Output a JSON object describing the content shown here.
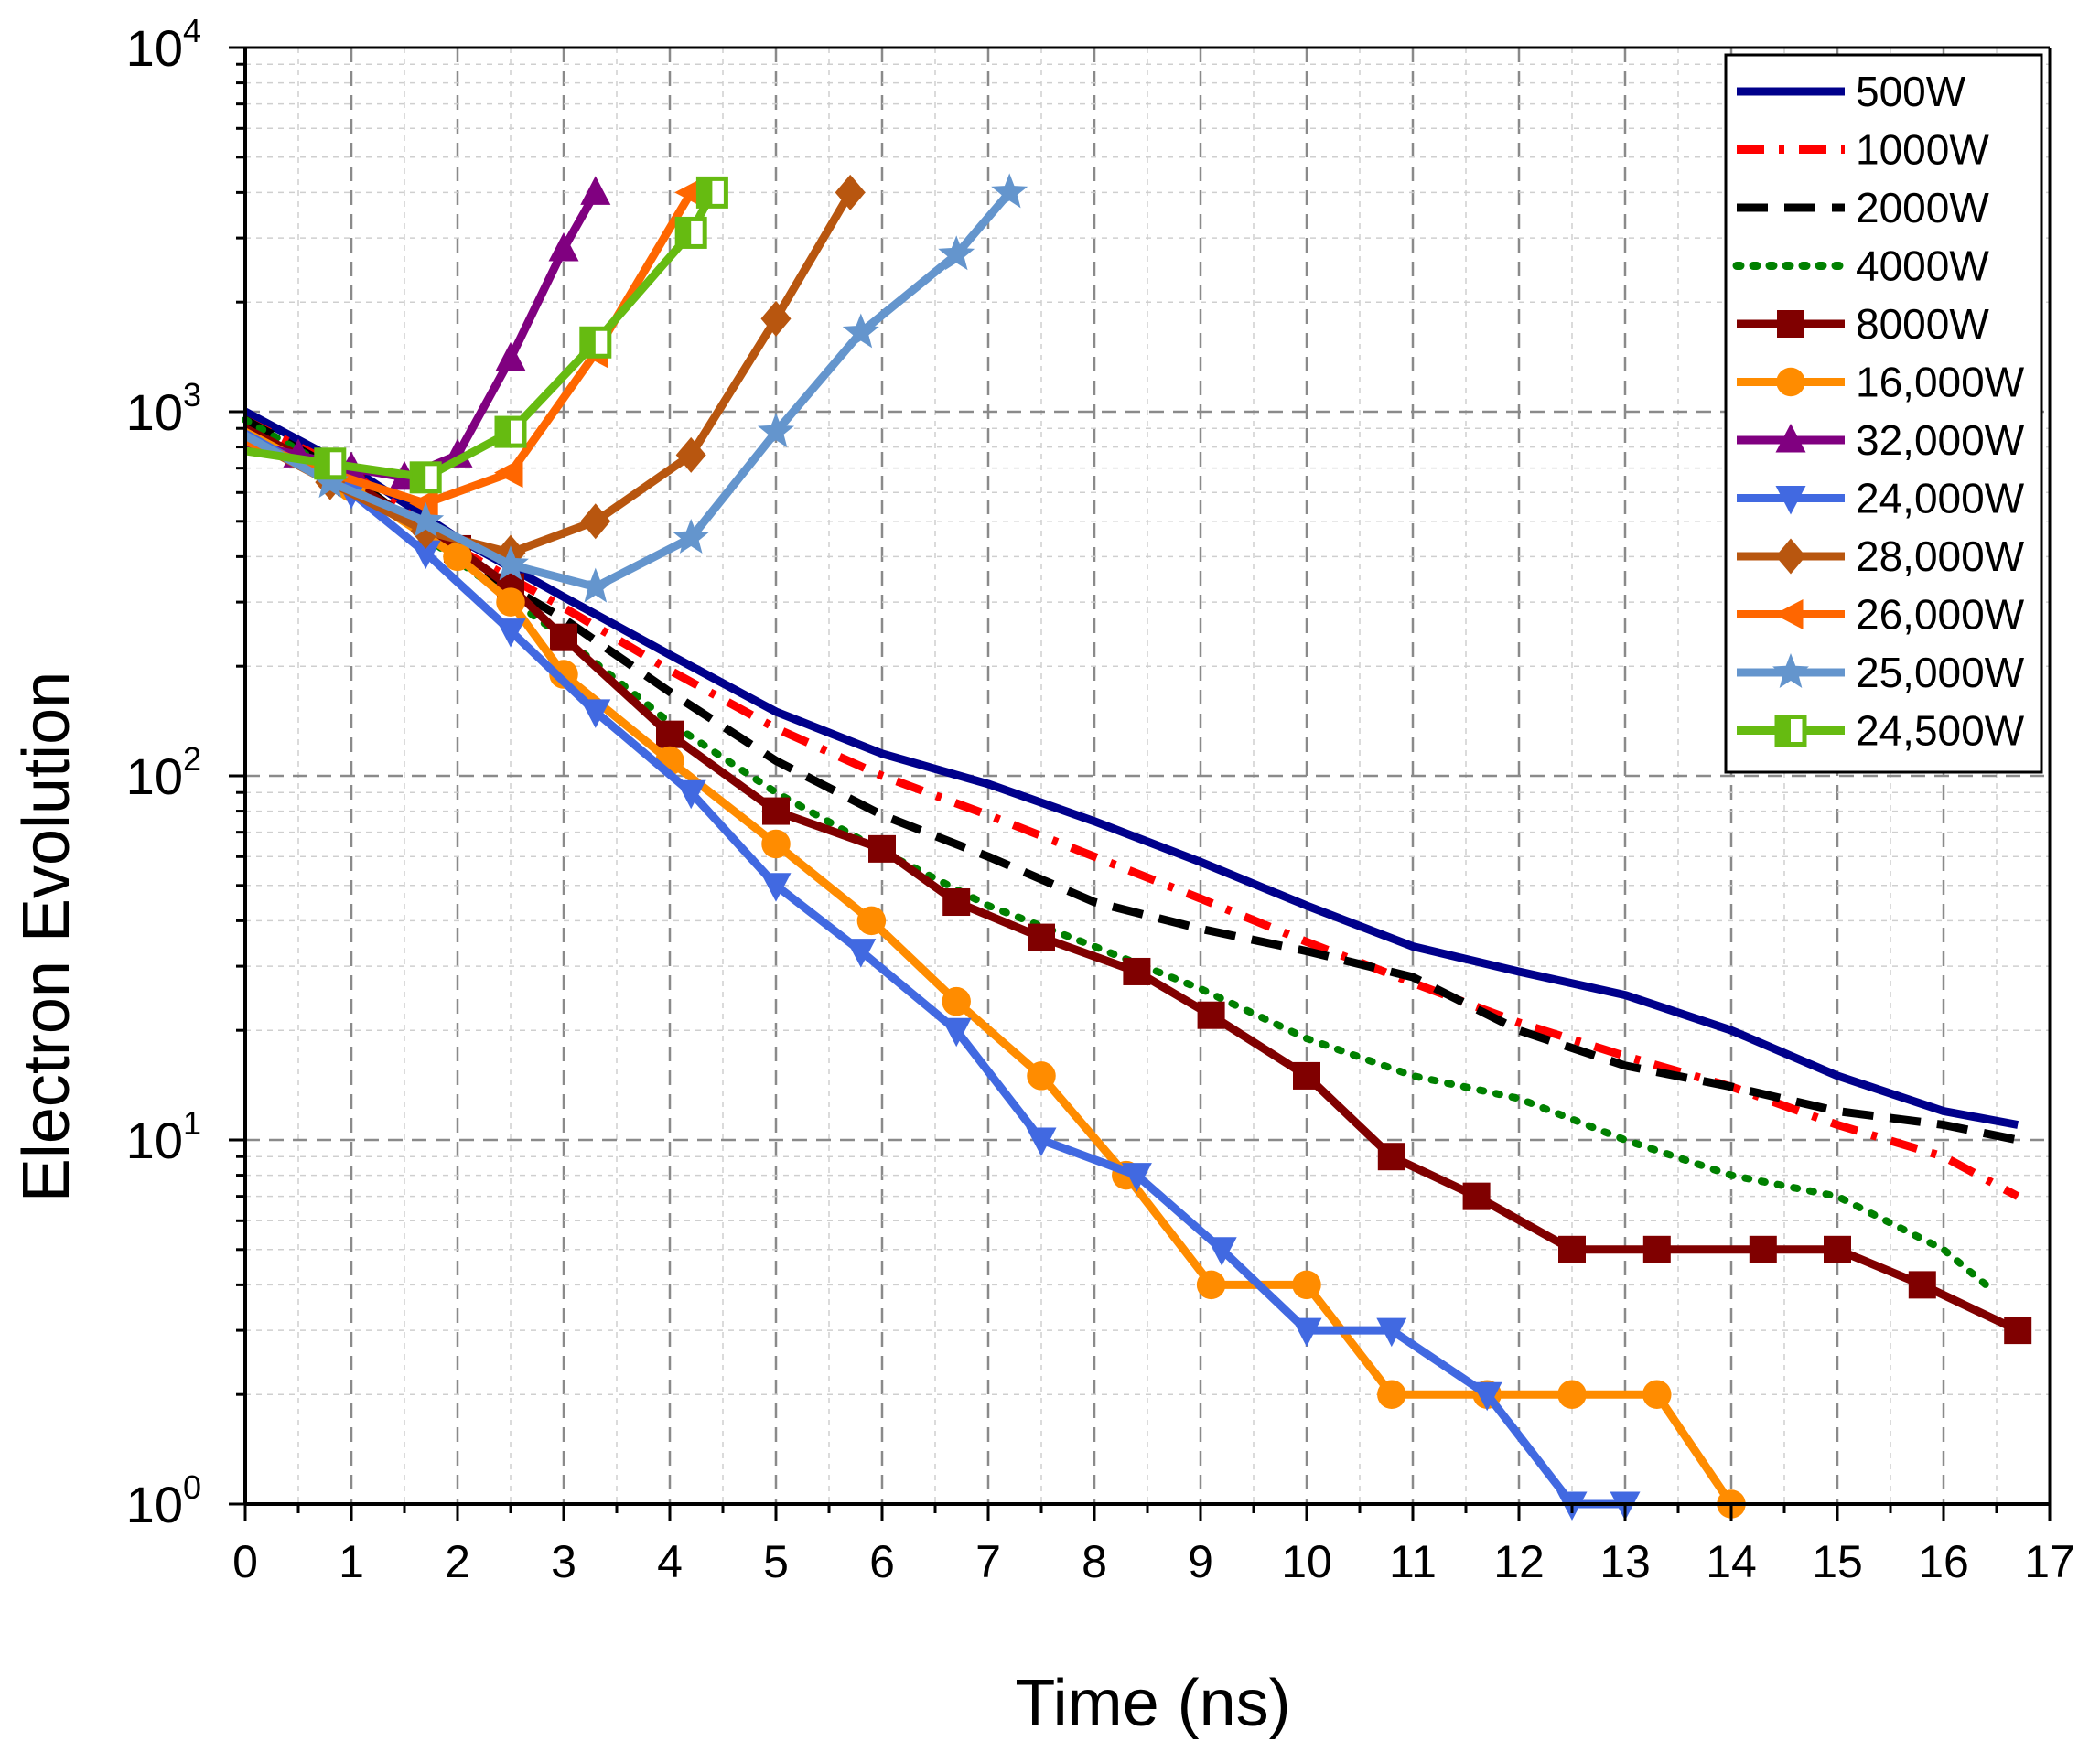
{
  "chart_data": {
    "type": "line",
    "title": "",
    "xlabel": "Time (ns)",
    "ylabel": "Electron Evolution",
    "xlim": [
      0,
      17
    ],
    "ylim": [
      1,
      10000
    ],
    "yscale": "log",
    "x_ticks": [
      "0",
      "1",
      "2",
      "3",
      "4",
      "5",
      "6",
      "7",
      "8",
      "9",
      "10",
      "11",
      "12",
      "13",
      "14",
      "15",
      "16",
      "17"
    ],
    "y_ticks": [
      {
        "value": 1,
        "base": "10",
        "exp": "0"
      },
      {
        "value": 10,
        "base": "10",
        "exp": "1"
      },
      {
        "value": 100,
        "base": "10",
        "exp": "2"
      },
      {
        "value": 1000,
        "base": "10",
        "exp": "3"
      },
      {
        "value": 10000,
        "base": "10",
        "exp": "4"
      }
    ],
    "grid": true,
    "legend_position": "top-right",
    "series": [
      {
        "name": "500W",
        "color": "#00008B",
        "style": "solid",
        "marker": "none",
        "x": [
          0,
          1,
          2,
          3,
          4,
          5,
          6,
          7,
          8,
          9,
          10,
          11,
          12,
          13,
          14,
          15,
          16,
          16.7
        ],
        "y": [
          1000,
          700,
          450,
          310,
          215,
          150,
          115,
          95,
          75,
          58,
          44,
          34,
          29,
          25,
          20,
          15,
          12,
          11
        ]
      },
      {
        "name": "1000W",
        "color": "#FF0000",
        "style": "dashdot",
        "marker": "none",
        "x": [
          0,
          1,
          2,
          3,
          4,
          5,
          6,
          7,
          8,
          9,
          10,
          11,
          12,
          13,
          14,
          15,
          16,
          16.7
        ],
        "y": [
          950,
          680,
          420,
          290,
          195,
          135,
          100,
          78,
          60,
          46,
          35,
          27,
          21,
          17,
          14,
          11,
          9,
          7
        ]
      },
      {
        "name": "2000W",
        "color": "#000000",
        "style": "dashed",
        "marker": "none",
        "x": [
          0,
          1,
          2,
          3,
          4,
          5,
          6,
          7,
          8,
          9,
          10,
          11,
          12,
          13,
          14,
          15,
          16,
          16.7
        ],
        "y": [
          950,
          660,
          400,
          270,
          170,
          110,
          78,
          60,
          45,
          38,
          33,
          28,
          20,
          16,
          14,
          12,
          11,
          10
        ]
      },
      {
        "name": "4000W",
        "color": "#008000",
        "style": "dotted",
        "marker": "none",
        "x": [
          0,
          1,
          2,
          3,
          4,
          5,
          6,
          7,
          8,
          9,
          10,
          11,
          12,
          13,
          14,
          15,
          16,
          16.4
        ],
        "y": [
          950,
          650,
          390,
          240,
          140,
          90,
          62,
          44,
          34,
          26,
          19,
          15,
          13,
          10,
          8,
          7,
          5,
          4
        ]
      },
      {
        "name": "8000W",
        "color": "#800000",
        "style": "solid",
        "marker": "square",
        "x": [
          0,
          1,
          2,
          2.5,
          3,
          4,
          5,
          6,
          6.7,
          7.5,
          8.4,
          9.1,
          10,
          10.8,
          11.6,
          12.5,
          13.3,
          14.3,
          15,
          15.8,
          16.7
        ],
        "y": [
          900,
          640,
          420,
          330,
          240,
          130,
          80,
          63,
          45,
          36,
          29,
          22,
          15,
          9,
          7,
          5,
          5,
          5,
          5,
          4,
          3
        ]
      },
      {
        "name": "16,000W",
        "color": "#FF8C00",
        "style": "solid",
        "marker": "circle",
        "x": [
          0,
          1,
          2,
          2.5,
          3,
          4,
          5,
          5.9,
          6.7,
          7.5,
          8.3,
          9.1,
          10,
          10.8,
          11.7,
          12.5,
          13.3,
          14
        ],
        "y": [
          880,
          620,
          400,
          300,
          190,
          110,
          65,
          40,
          24,
          15,
          8,
          4,
          4,
          2,
          2,
          2,
          2,
          1
        ]
      },
      {
        "name": "32,000W",
        "color": "#800080",
        "style": "solid",
        "marker": "triangle-up",
        "x": [
          0,
          0.5,
          1,
          1.5,
          2,
          2.5,
          3,
          3.3
        ],
        "y": [
          820,
          760,
          700,
          660,
          760,
          1400,
          2800,
          4000
        ]
      },
      {
        "name": "24,000W",
        "color": "#4169E1",
        "style": "solid",
        "marker": "triangle-down",
        "x": [
          0,
          1,
          1.7,
          2.5,
          3.3,
          4.2,
          5,
          5.8,
          6.7,
          7.5,
          8.4,
          9.2,
          10,
          10.8,
          11.7,
          12.5,
          13
        ],
        "y": [
          870,
          600,
          410,
          250,
          150,
          90,
          50,
          33,
          20,
          10,
          8,
          5,
          3,
          3,
          2,
          1,
          1
        ]
      },
      {
        "name": "28,000W",
        "color": "#B8560F",
        "style": "solid",
        "marker": "diamond",
        "x": [
          0,
          0.8,
          1.7,
          2.5,
          3.3,
          4.2,
          5,
          5.7
        ],
        "y": [
          850,
          640,
          470,
          410,
          500,
          760,
          1800,
          4000
        ]
      },
      {
        "name": "26,000W",
        "color": "#FF6600",
        "style": "solid",
        "marker": "triangle-left",
        "x": [
          0,
          0.8,
          1.7,
          2.5,
          3.3,
          4.2
        ],
        "y": [
          830,
          680,
          560,
          680,
          1450,
          4000
        ]
      },
      {
        "name": "25,000W",
        "color": "#6495CD",
        "style": "solid",
        "marker": "star",
        "x": [
          0,
          0.8,
          1.7,
          2.5,
          3.3,
          4.2,
          5,
          5.8,
          6.7,
          7.2
        ],
        "y": [
          860,
          640,
          500,
          380,
          330,
          450,
          880,
          1650,
          2700,
          4000
        ]
      },
      {
        "name": "24,500W",
        "color": "#66BB11",
        "style": "solid",
        "marker": "half-square",
        "x": [
          0,
          0.8,
          1.7,
          2.5,
          3.3,
          4.2,
          4.4
        ],
        "y": [
          780,
          720,
          660,
          880,
          1550,
          3100,
          4000
        ]
      }
    ]
  }
}
